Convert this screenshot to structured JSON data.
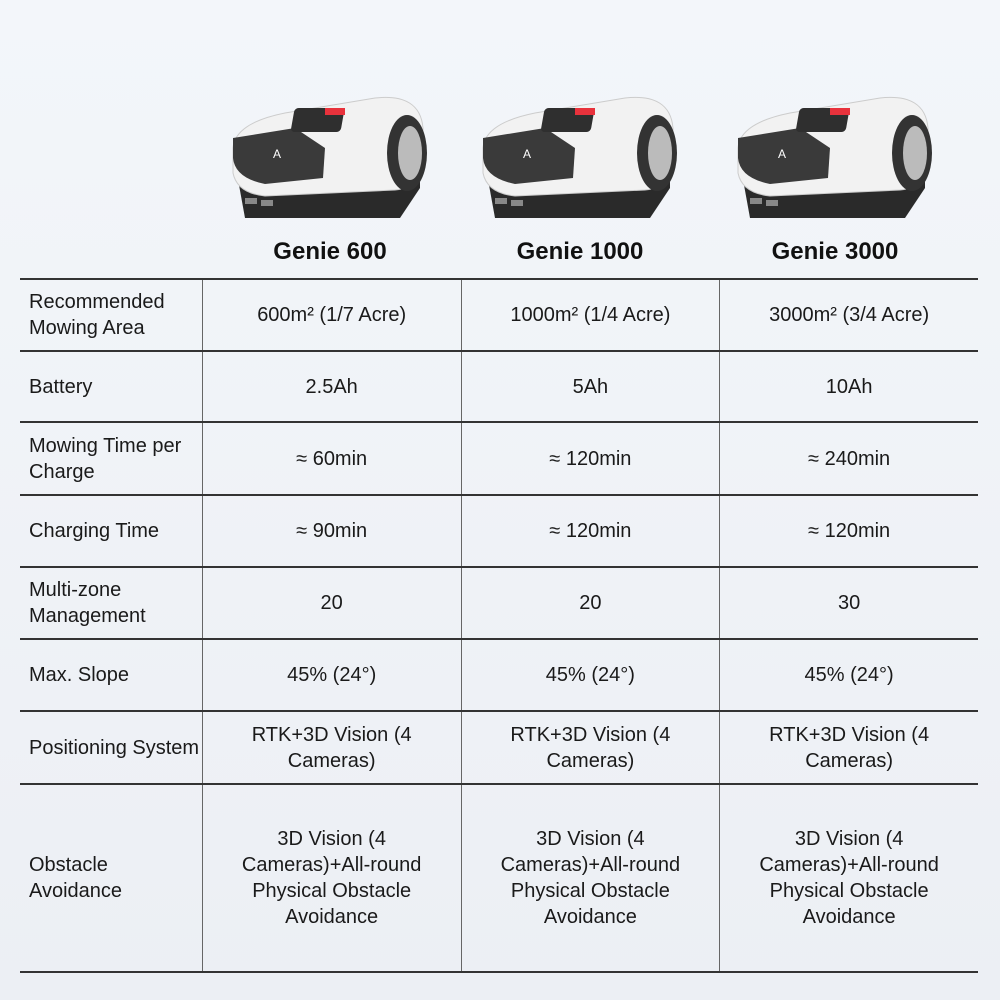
{
  "products": [
    {
      "name": "Genie 600",
      "image": "robotic-lawn-mower"
    },
    {
      "name": "Genie 1000",
      "image": "robotic-lawn-mower"
    },
    {
      "name": "Genie 3000",
      "image": "robotic-lawn-mower"
    }
  ],
  "rows": [
    {
      "label": "Recommended Mowing Area",
      "values": [
        "600m² (1/7 Acre)",
        "1000m² (1/4 Acre)",
        "3000m² (3/4 Acre)"
      ]
    },
    {
      "label": "Battery",
      "values": [
        "2.5Ah",
        "5Ah",
        "10Ah"
      ]
    },
    {
      "label": "Mowing Time per Charge",
      "values": [
        "≈ 60min",
        "≈ 120min",
        "≈ 240min"
      ]
    },
    {
      "label": "Charging Time",
      "values": [
        "≈ 90min",
        "≈ 120min",
        "≈ 120min"
      ]
    },
    {
      "label": "Multi-zone Management",
      "values": [
        "20",
        "20",
        "30"
      ]
    },
    {
      "label": "Max. Slope",
      "values": [
        "45% (24°)",
        "45% (24°)",
        "45% (24°)"
      ]
    },
    {
      "label": "Positioning System",
      "values": [
        "RTK+3D Vision (4 Cameras)",
        "RTK+3D Vision (4 Cameras)",
        "RTK+3D Vision (4 Cameras)"
      ]
    },
    {
      "label": "Obstacle Avoidance",
      "values": [
        "3D Vision (4 Cameras)+All-round Physical Obstacle Avoidance",
        "3D Vision (4 Cameras)+All-round Physical Obstacle Avoidance",
        "3D Vision (4 Cameras)+All-round Physical Obstacle Avoidance"
      ]
    }
  ],
  "colors": {
    "accent": "#e8323c",
    "body": "#f4f4f4",
    "dark": "#2a2a2a"
  }
}
